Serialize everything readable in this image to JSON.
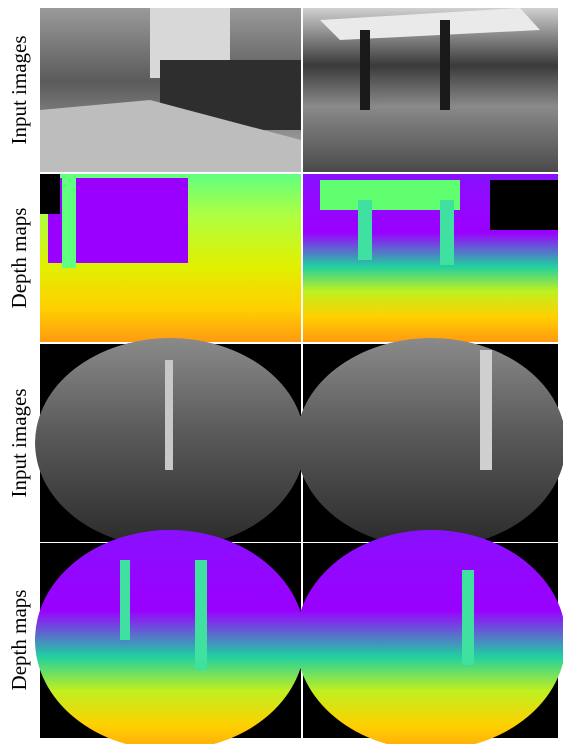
{
  "rows": [
    {
      "label": "Input images"
    },
    {
      "label": "Depth maps"
    },
    {
      "label": "Input images"
    },
    {
      "label": "Depth maps"
    }
  ]
}
